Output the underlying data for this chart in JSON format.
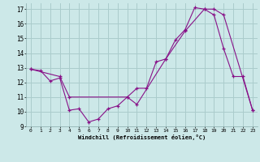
{
  "xlabel": "Windchill (Refroidissement éolien,°C)",
  "xlim": [
    -0.5,
    23.5
  ],
  "ylim": [
    9,
    17.4
  ],
  "yticks": [
    9,
    10,
    11,
    12,
    13,
    14,
    15,
    16,
    17
  ],
  "xticks": [
    0,
    1,
    2,
    3,
    4,
    5,
    6,
    7,
    8,
    9,
    10,
    11,
    12,
    13,
    14,
    15,
    16,
    17,
    18,
    19,
    20,
    21,
    22,
    23
  ],
  "bg_color": "#cce8e8",
  "grid_color": "#aacccc",
  "line_color": "#881188",
  "line1_x": [
    0,
    1,
    2,
    3,
    4,
    5,
    6,
    7,
    8,
    9,
    10,
    11,
    12,
    13,
    14,
    15,
    16,
    17,
    18,
    19,
    20,
    21,
    22,
    23
  ],
  "line1_y": [
    12.9,
    12.8,
    12.1,
    12.3,
    10.1,
    10.2,
    9.3,
    9.5,
    10.2,
    10.4,
    11.0,
    11.6,
    11.6,
    13.4,
    13.6,
    14.9,
    15.6,
    17.1,
    17.0,
    16.6,
    14.3,
    12.4,
    12.4,
    10.1
  ],
  "line2_x": [
    0,
    3,
    4,
    10,
    11,
    14,
    16,
    18,
    19,
    20,
    23
  ],
  "line2_y": [
    12.9,
    12.4,
    11.0,
    11.0,
    10.5,
    13.6,
    15.5,
    17.0,
    17.0,
    16.6,
    10.1
  ]
}
